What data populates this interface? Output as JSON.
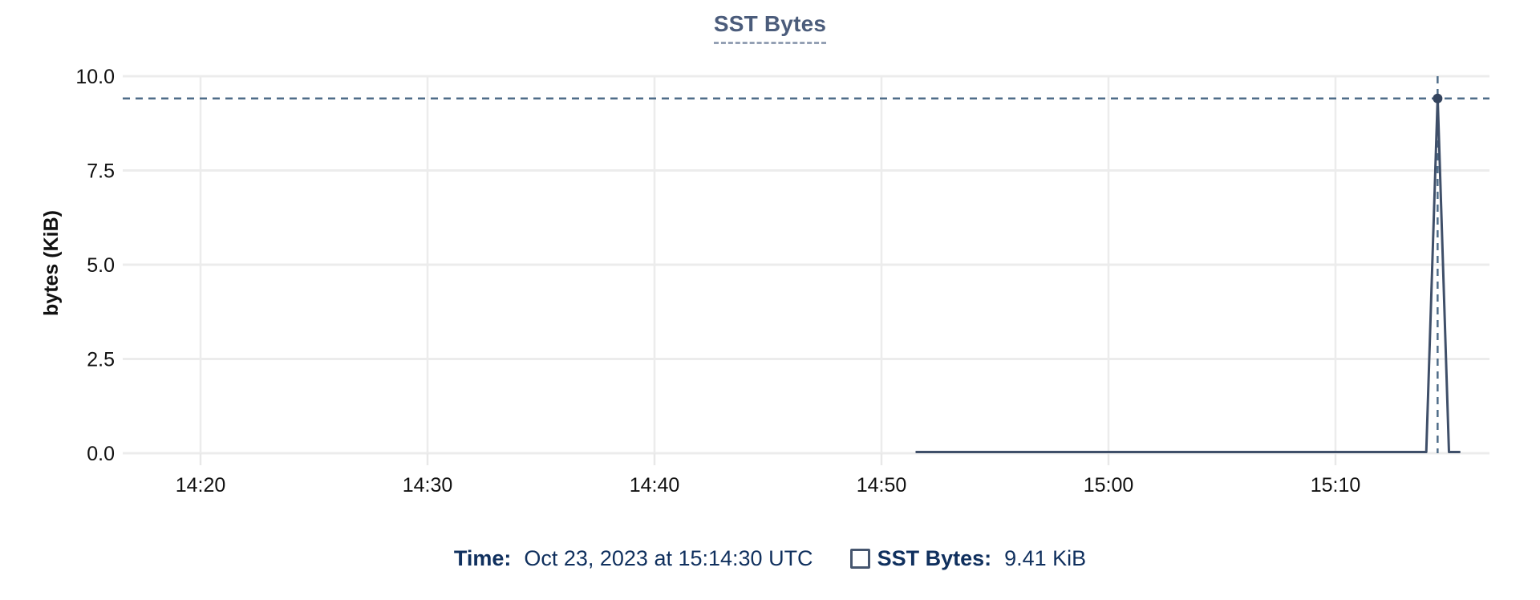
{
  "chart": {
    "title": "SST Bytes"
  },
  "chart_data": {
    "type": "line",
    "title": "SST Bytes",
    "xlabel": "",
    "ylabel": "bytes (KiB)",
    "ylim": [
      0,
      10
    ],
    "x_ticks": [
      "14:20",
      "14:30",
      "14:40",
      "14:50",
      "15:00",
      "15:10"
    ],
    "y_ticks": [
      "10.0",
      "7.5",
      "5.0",
      "2.5",
      "0.0"
    ],
    "grid": true,
    "legend_position": "bottom",
    "series": [
      {
        "name": "SST Bytes",
        "unit": "KiB",
        "points": [
          [
            "14:51:30",
            0
          ],
          [
            "15:14:00",
            0
          ],
          [
            "15:14:30",
            9.41
          ],
          [
            "15:15:00",
            0
          ],
          [
            "15:15:30",
            0
          ]
        ]
      }
    ],
    "hover": {
      "time": "15:14:30",
      "value": 9.41,
      "value_label": "9.41 KiB"
    }
  },
  "footer": {
    "time_label": "Time:",
    "time_value": "Oct 23, 2023 at 15:14:30 UTC",
    "series_label": "SST Bytes:",
    "series_value": "9.41 KiB"
  },
  "colors": {
    "bg": "#ffffff",
    "grid": "#ececec",
    "tick": "#e8e8e8",
    "axis-text": "#111111",
    "title": "#4b5c7b",
    "title-underline": "#94a0b4",
    "series": "#3f4f69",
    "marker": "#34445e",
    "crosshair": "#4f6d89",
    "navy": "#10305e",
    "legend-border": "#46566f"
  }
}
